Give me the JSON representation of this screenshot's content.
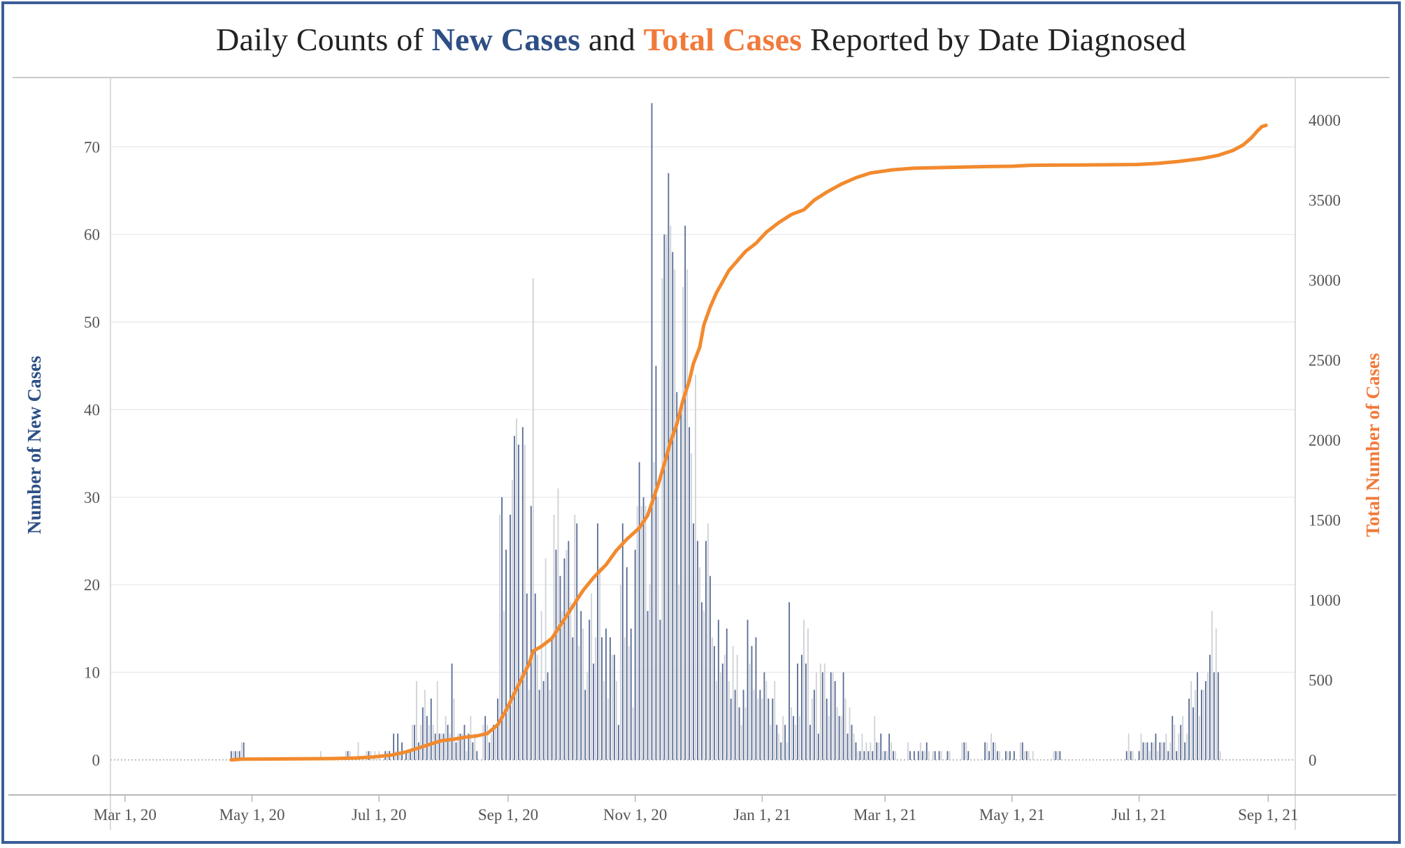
{
  "title": {
    "part1": "Daily Counts of ",
    "new_cases": "New Cases",
    "part2": " and ",
    "total_cases": "Total Cases",
    "part3": " Reported by Date Diagnosed"
  },
  "colors": {
    "frame": "#3a5e97",
    "new_cases_bar": "#5a6e96",
    "alt_bar": "#cfd2d8",
    "total_line": "#f28a2e",
    "title_blue": "#2e4f85",
    "title_orange": "#f07a3b"
  },
  "chart_data": {
    "type": "bar+line",
    "title": "Daily Counts of New Cases and Total Cases Reported by Date Diagnosed",
    "xlabel": "",
    "ylabel_left": "Number of New Cases",
    "ylabel_right": "Total Number of Cases",
    "x_ticks": [
      "Mar 1, 20",
      "May 1, 20",
      "Jul 1, 20",
      "Sep 1, 20",
      "Nov 1, 20",
      "Jan 1, 21",
      "Mar 1, 21",
      "May 1, 21",
      "Jul 1, 21",
      "Sep 1, 21"
    ],
    "x_range": [
      "2020-02-23",
      "2021-09-14"
    ],
    "y_left_ticks": [
      0,
      10,
      20,
      30,
      40,
      50,
      60,
      70
    ],
    "y_left_range": [
      -4,
      78
    ],
    "y_right_ticks": [
      0,
      500,
      1000,
      1500,
      2000,
      2500,
      3000,
      3500,
      4000
    ],
    "y_right_range": [
      -219,
      4271
    ],
    "grid": "horizontal",
    "series": [
      {
        "name": "New Cases",
        "type": "bar",
        "start_date": "2020-04-21",
        "values": [
          1,
          1,
          1,
          1,
          1,
          2,
          2,
          0,
          0,
          0,
          0,
          0,
          0,
          0,
          0,
          0,
          0,
          0,
          0,
          0,
          0,
          0,
          0,
          0,
          0,
          0,
          0,
          0,
          0,
          0,
          0,
          0,
          0,
          0,
          0,
          0,
          0,
          0,
          0,
          0,
          0,
          0,
          0,
          1,
          0,
          0,
          0,
          0,
          0,
          0,
          0,
          0,
          0,
          0,
          0,
          1,
          1,
          1,
          0,
          0,
          0,
          2,
          0,
          0,
          0,
          1,
          1,
          1,
          0,
          1,
          0,
          1,
          0,
          0,
          1,
          1,
          1,
          0,
          3,
          1,
          3,
          1,
          2,
          0,
          1,
          1,
          1,
          4,
          4,
          9,
          2,
          4,
          6,
          8,
          5,
          4,
          7,
          4,
          3,
          9,
          3,
          3,
          3,
          5,
          4,
          3,
          11,
          7,
          2,
          3,
          3,
          3,
          4,
          1,
          3,
          5,
          2,
          3,
          1,
          0,
          0,
          4,
          5,
          4,
          2,
          3,
          4,
          4,
          7,
          28,
          30,
          17,
          24,
          6,
          28,
          32,
          37,
          39,
          36,
          10,
          38,
          36,
          19,
          8,
          29,
          55,
          19,
          12,
          8,
          17,
          9,
          23,
          10,
          8,
          14,
          28,
          24,
          31,
          21,
          17,
          23,
          24,
          25,
          18,
          14,
          28,
          27,
          13,
          17,
          15,
          8,
          10,
          16,
          19,
          11,
          14,
          27,
          22,
          14,
          9,
          15,
          7,
          14,
          12,
          12,
          9,
          4,
          20,
          27,
          14,
          22,
          13,
          15,
          6,
          24,
          29,
          34,
          29,
          30,
          29,
          17,
          20,
          75,
          34,
          45,
          30,
          16,
          55,
          60,
          60,
          67,
          61,
          58,
          56,
          42,
          20,
          40,
          54,
          61,
          56,
          38,
          35,
          27,
          44,
          25,
          22,
          18,
          17,
          25,
          27,
          21,
          14,
          13,
          9,
          16,
          10,
          11,
          12,
          15,
          9,
          7,
          13,
          8,
          12,
          6,
          4,
          8,
          6,
          16,
          11,
          13,
          8,
          14,
          7,
          8,
          7,
          10,
          9,
          7,
          4,
          7,
          9,
          4,
          3,
          2,
          5,
          4,
          2,
          18,
          6,
          5,
          4,
          11,
          5,
          12,
          16,
          11,
          15,
          4,
          7,
          8,
          10,
          3,
          11,
          10,
          11,
          7,
          5,
          10,
          10,
          9,
          6,
          5,
          5,
          10,
          7,
          3,
          6,
          4,
          3,
          2,
          1,
          1,
          3,
          1,
          2,
          1,
          2,
          1,
          5,
          2,
          2,
          3,
          1,
          1,
          1,
          3,
          2,
          1,
          1,
          0,
          0,
          0,
          0,
          0,
          2,
          1,
          0,
          1,
          0,
          1,
          2,
          1,
          1,
          2,
          1,
          0,
          1,
          1,
          0,
          1,
          1,
          0,
          0,
          1,
          1,
          0,
          0,
          0,
          0,
          0,
          2,
          2,
          2,
          1,
          0,
          0,
          0,
          0,
          0,
          0,
          0,
          2,
          2,
          1,
          3,
          2,
          2,
          1,
          1,
          0,
          0,
          1,
          1,
          1,
          0,
          1,
          0,
          0,
          2,
          2,
          1,
          1,
          1,
          0,
          1,
          0,
          0,
          0,
          0,
          0,
          0,
          0,
          0,
          0,
          1,
          1,
          1,
          1,
          0,
          0,
          0,
          0,
          0,
          0,
          0,
          0,
          0,
          0,
          0,
          0,
          0,
          0,
          0,
          0,
          0,
          0,
          0,
          0,
          0,
          0,
          0,
          0,
          0,
          0,
          0,
          0,
          0,
          0,
          0,
          1,
          3,
          1,
          1,
          0,
          0,
          1,
          3,
          2,
          2,
          2,
          1,
          2,
          2,
          3,
          1,
          2,
          2,
          2,
          3,
          1,
          2,
          5,
          4,
          1,
          3,
          4,
          5,
          2,
          3,
          7,
          9,
          6,
          8,
          10,
          5,
          8,
          8,
          9,
          10,
          12,
          17,
          10,
          15,
          10,
          1
        ]
      },
      {
        "name": "Total Cases",
        "type": "line",
        "points": [
          [
            "2020-04-21",
            0
          ],
          [
            "2020-04-26",
            5
          ],
          [
            "2020-05-15",
            6
          ],
          [
            "2020-06-08",
            8
          ],
          [
            "2020-06-20",
            12
          ],
          [
            "2020-06-28",
            18
          ],
          [
            "2020-07-07",
            30
          ],
          [
            "2020-07-14",
            50
          ],
          [
            "2020-07-20",
            75
          ],
          [
            "2020-07-26",
            100
          ],
          [
            "2020-07-31",
            120
          ],
          [
            "2020-08-06",
            130
          ],
          [
            "2020-08-12",
            143
          ],
          [
            "2020-08-17",
            150
          ],
          [
            "2020-08-22",
            165
          ],
          [
            "2020-08-27",
            220
          ],
          [
            "2020-08-31",
            310
          ],
          [
            "2020-09-06",
            470
          ],
          [
            "2020-09-11",
            600
          ],
          [
            "2020-09-13",
            680
          ],
          [
            "2020-09-17",
            710
          ],
          [
            "2020-09-22",
            760
          ],
          [
            "2020-09-28",
            880
          ],
          [
            "2020-10-03",
            980
          ],
          [
            "2020-10-07",
            1060
          ],
          [
            "2020-10-12",
            1140
          ],
          [
            "2020-10-18",
            1220
          ],
          [
            "2020-10-23",
            1310
          ],
          [
            "2020-10-28",
            1380
          ],
          [
            "2020-11-03",
            1450
          ],
          [
            "2020-11-07",
            1530
          ],
          [
            "2020-11-12",
            1720
          ],
          [
            "2020-11-15",
            1850
          ],
          [
            "2020-11-18",
            1990
          ],
          [
            "2020-11-21",
            2100
          ],
          [
            "2020-11-24",
            2250
          ],
          [
            "2020-11-27",
            2370
          ],
          [
            "2020-11-29",
            2480
          ],
          [
            "2020-12-02",
            2580
          ],
          [
            "2020-12-04",
            2720
          ],
          [
            "2020-12-07",
            2830
          ],
          [
            "2020-12-10",
            2920
          ],
          [
            "2020-12-13",
            2990
          ],
          [
            "2020-12-16",
            3060
          ],
          [
            "2020-12-20",
            3120
          ],
          [
            "2020-12-24",
            3180
          ],
          [
            "2020-12-29",
            3230
          ],
          [
            "2021-01-03",
            3300
          ],
          [
            "2021-01-09",
            3360
          ],
          [
            "2021-01-15",
            3410
          ],
          [
            "2021-01-21",
            3440
          ],
          [
            "2021-01-26",
            3500
          ],
          [
            "2021-02-01",
            3550
          ],
          [
            "2021-02-08",
            3600
          ],
          [
            "2021-02-15",
            3640
          ],
          [
            "2021-02-22",
            3670
          ],
          [
            "2021-03-05",
            3690
          ],
          [
            "2021-03-15",
            3700
          ],
          [
            "2021-04-01",
            3705
          ],
          [
            "2021-04-20",
            3710
          ],
          [
            "2021-05-01",
            3712
          ],
          [
            "2021-05-10",
            3718
          ],
          [
            "2021-06-01",
            3720
          ],
          [
            "2021-06-30",
            3723
          ],
          [
            "2021-07-10",
            3730
          ],
          [
            "2021-07-20",
            3742
          ],
          [
            "2021-07-31",
            3760
          ],
          [
            "2021-08-08",
            3780
          ],
          [
            "2021-08-15",
            3810
          ],
          [
            "2021-08-20",
            3845
          ],
          [
            "2021-08-24",
            3890
          ],
          [
            "2021-08-27",
            3935
          ],
          [
            "2021-08-29",
            3960
          ],
          [
            "2021-08-31",
            3968
          ]
        ]
      }
    ],
    "legend": "none (series names colour-coded in title)"
  }
}
